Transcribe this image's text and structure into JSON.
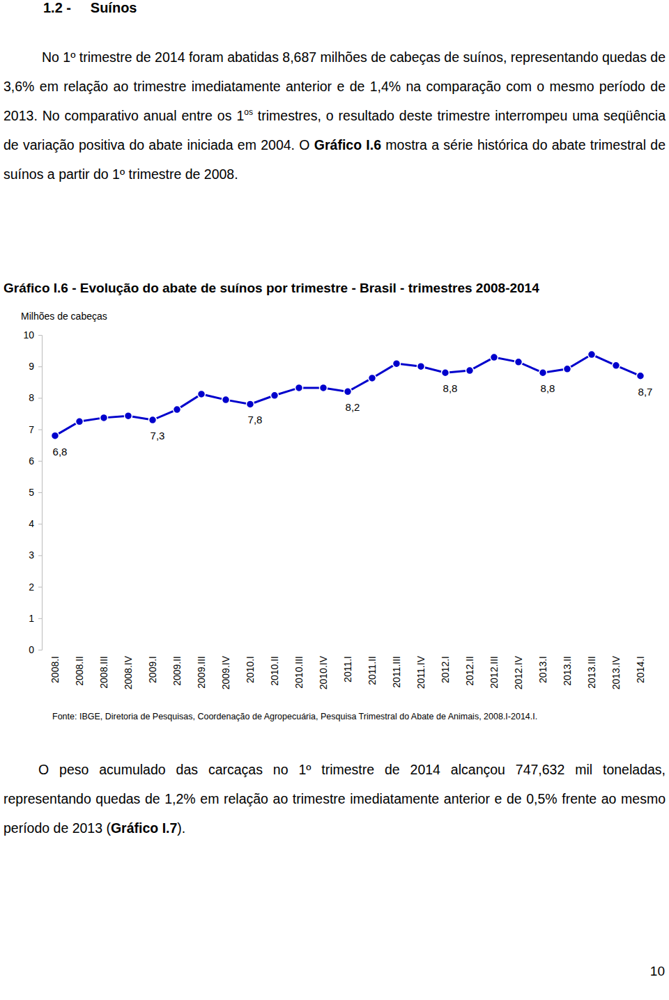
{
  "heading": "1.2 -     Suínos",
  "paragraphs": [
    {
      "runs": [
        {
          "text": "No 1º trimestre de 2014 foram abatidas 8,687 milhões de cabeças de suínos, representando quedas de 3,6% em relação ao trimestre imediatamente anterior e de 1,4% na comparação com o mesmo período de 2013. No comparativo anual entre os 1"
        },
        {
          "text": "os",
          "style": "sup"
        },
        {
          "text": " trimestres, o resultado deste trimestre interrompeu uma seqüência de variação positiva do abate iniciada em 2004. O "
        },
        {
          "text": "Gráfico I.6",
          "style": "bold"
        },
        {
          "text": " mostra a série histórica do abate trimestral de suínos a partir do 1º trimestre de 2008."
        }
      ]
    },
    {
      "runs": [
        {
          "text": "O peso acumulado das carcaças no 1º trimestre de 2014 alcançou 747,632 mil toneladas, representando quedas de 1,2% em relação ao trimestre imediatamente anterior e de 0,5% frente ao mesmo período de 2013 ("
        },
        {
          "text": "Gráfico I.7",
          "style": "bold"
        },
        {
          "text": ")."
        }
      ]
    }
  ],
  "chart_data": {
    "type": "line",
    "title": "Gráfico I.6 - Evolução do abate de suínos por trimestre - Brasil - trimestres 2008-2014",
    "y_label": "Milhões de cabeças",
    "categories": [
      "2008.I",
      "2008.II",
      "2008.III",
      "2008.IV",
      "2009.I",
      "2009.II",
      "2009.III",
      "2009.IV",
      "2010.I",
      "2010.II",
      "2010.III",
      "2010.IV",
      "2011.I",
      "2011.II",
      "2011.III",
      "2011.IV",
      "2012.I",
      "2012.II",
      "2012.III",
      "2012.IV",
      "2013.I",
      "2013.II",
      "2013.III",
      "2013.IV",
      "2014.I"
    ],
    "values": [
      6.8,
      7.25,
      7.37,
      7.43,
      7.3,
      7.63,
      8.12,
      7.94,
      7.8,
      8.08,
      8.32,
      8.32,
      8.2,
      8.63,
      9.09,
      9.0,
      8.8,
      8.87,
      9.29,
      9.14,
      8.8,
      8.92,
      9.38,
      9.03,
      8.7
    ],
    "value_labels": [
      "6,8",
      null,
      null,
      null,
      "7,3",
      null,
      null,
      null,
      "7,8",
      null,
      null,
      null,
      "8,2",
      null,
      null,
      null,
      "8,8",
      null,
      null,
      null,
      "8,8",
      null,
      null,
      null,
      "8,7"
    ],
    "data_labels": true,
    "color": "#0000cc",
    "marker": "circle",
    "ylim": [
      0,
      10
    ],
    "yticks": [
      0,
      1,
      2,
      3,
      4,
      5,
      6,
      7,
      8,
      9,
      10
    ],
    "grid": false
  },
  "source": "Fonte: IBGE, Diretoria de Pesquisas, Coordenação de Agropecuária, Pesquisa Trimestral do Abate de Animais, 2008.I-2014.I.",
  "page_number": "10"
}
